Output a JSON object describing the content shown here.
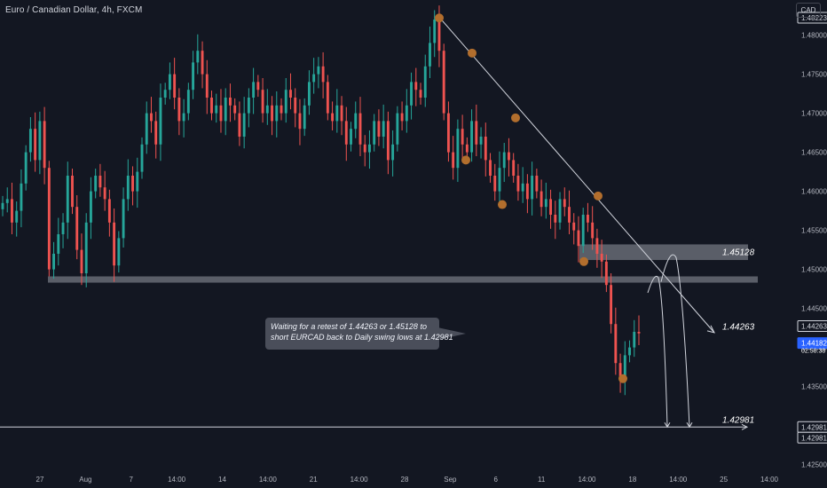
{
  "header": {
    "symbol_title": "Euro / Canadian Dollar, 4h, FXCM",
    "currency": "CAD"
  },
  "annotation": {
    "line1": "Waiting for a retest of 1.44263 or 1.45128 to",
    "line2": "short EURCAD back to Daily swing lows at 1.42981"
  },
  "chart_data": {
    "type": "candlestick",
    "symbol": "Euro / Canadian Dollar",
    "timeframe": "4h",
    "source": "FXCM",
    "ylim": [
      1.4245,
      1.4845
    ],
    "y_ticks": [
      1.48,
      1.475,
      1.47,
      1.465,
      1.46,
      1.455,
      1.45,
      1.445,
      1.44,
      1.435,
      1.43,
      1.425
    ],
    "y_tick_labels": [
      "1.48000",
      "1.47500",
      "1.47000",
      "1.46500",
      "1.46000",
      "1.45500",
      "1.45000",
      "1.44500",
      "1.44000",
      "1.43500",
      "1.43000",
      "1.42500"
    ],
    "x_tick_labels": [
      "27",
      "Aug",
      "7",
      "14:00",
      "14",
      "14:00",
      "21",
      "14:00",
      "28",
      "Sep",
      "6",
      "11",
      "14:00",
      "18",
      "14:00",
      "25",
      "14:00"
    ],
    "price_markers": [
      {
        "label": "1.48223",
        "value": 1.48223,
        "style": "outline"
      },
      {
        "label": "1.44263",
        "value": 1.44263,
        "style": "outline"
      },
      {
        "label": "1.44182",
        "value": 1.44182,
        "style": "current"
      },
      {
        "label": "02:58:38",
        "value": 1.44182,
        "style": "countdown"
      },
      {
        "label": "1.42981",
        "value": 1.42981,
        "style": "outline"
      },
      {
        "label": "1.42981",
        "value": 1.42981,
        "style": "outline2"
      }
    ],
    "levels": [
      {
        "label": "1.45128",
        "value": 1.45128
      },
      {
        "label": "1.44263",
        "value": 1.44263
      },
      {
        "label": "1.42981",
        "value": 1.42981
      }
    ],
    "zones": [
      {
        "low": 1.4512,
        "high": 1.4532
      },
      {
        "low": 1.4483,
        "high": 1.4491
      }
    ],
    "trendline": [
      [
        1.4823,
        0.0
      ],
      [
        1.4419,
        1.0
      ]
    ],
    "swing_highs": [
      1.4822,
      1.4777,
      1.4694,
      1.4594
    ],
    "swing_lows": [
      1.464,
      1.4583,
      1.451,
      1.436
    ],
    "closes": [
      1.4585,
      1.459,
      1.456,
      1.4575,
      1.461,
      1.465,
      1.468,
      1.464,
      1.469,
      1.463,
      1.45,
      1.452,
      1.4545,
      1.456,
      1.462,
      1.458,
      1.4525,
      1.4495,
      1.456,
      1.46,
      1.462,
      1.4605,
      1.459,
      1.456,
      1.4505,
      1.454,
      1.459,
      1.462,
      1.46,
      1.4625,
      1.466,
      1.47,
      1.469,
      1.466,
      1.472,
      1.473,
      1.475,
      1.472,
      1.469,
      1.47,
      1.473,
      1.4765,
      1.478,
      1.475,
      1.472,
      1.47,
      1.471,
      1.469,
      1.472,
      1.471,
      1.47,
      1.467,
      1.47,
      1.472,
      1.474,
      1.473,
      1.47,
      1.471,
      1.469,
      1.471,
      1.47,
      1.473,
      1.472,
      1.47,
      1.468,
      1.471,
      1.474,
      1.475,
      1.476,
      1.474,
      1.47,
      1.469,
      1.471,
      1.469,
      1.466,
      1.468,
      1.47,
      1.466,
      1.465,
      1.466,
      1.469,
      1.467,
      1.469,
      1.464,
      1.466,
      1.47,
      1.469,
      1.471,
      1.474,
      1.473,
      1.472,
      1.476,
      1.479,
      1.482,
      1.478,
      1.47,
      1.465,
      1.463,
      1.468,
      1.466,
      1.465,
      1.469,
      1.466,
      1.467,
      1.464,
      1.462,
      1.46,
      1.463,
      1.465,
      1.464,
      1.462,
      1.46,
      1.461,
      1.459,
      1.462,
      1.46,
      1.458,
      1.459,
      1.457,
      1.456,
      1.459,
      1.458,
      1.456,
      1.455,
      1.453,
      1.457,
      1.456,
      1.454,
      1.452,
      1.451,
      1.448,
      1.443,
      1.438,
      1.436,
      1.439,
      1.44,
      1.442,
      1.4418
    ]
  }
}
